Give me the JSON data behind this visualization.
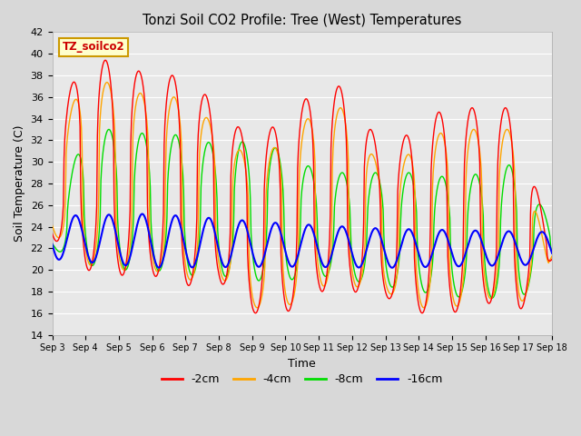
{
  "title": "Tonzi Soil CO2 Profile: Tree (West) Temperatures",
  "ylabel": "Soil Temperature (C)",
  "xlabel": "Time",
  "watermark": "TZ_soilco2",
  "ylim": [
    14,
    42
  ],
  "yticks": [
    14,
    16,
    18,
    20,
    22,
    24,
    26,
    28,
    30,
    32,
    34,
    36,
    38,
    40,
    42
  ],
  "x_labels": [
    "Sep 3",
    "Sep 4",
    "Sep 5",
    "Sep 6",
    "Sep 7",
    "Sep 8",
    "Sep 9",
    "Sep 10",
    "Sep 11",
    "Sep 12",
    "Sep 13",
    "Sep 14",
    "Sep 15",
    "Sep 16",
    "Sep 17",
    "Sep 18"
  ],
  "series_colors": {
    "-2cm": "#ff0000",
    "-4cm": "#ffa500",
    "-8cm": "#00dd00",
    "-16cm": "#0000ff"
  },
  "bg_color": "#e8e8e8",
  "grid_color": "#ffffff"
}
